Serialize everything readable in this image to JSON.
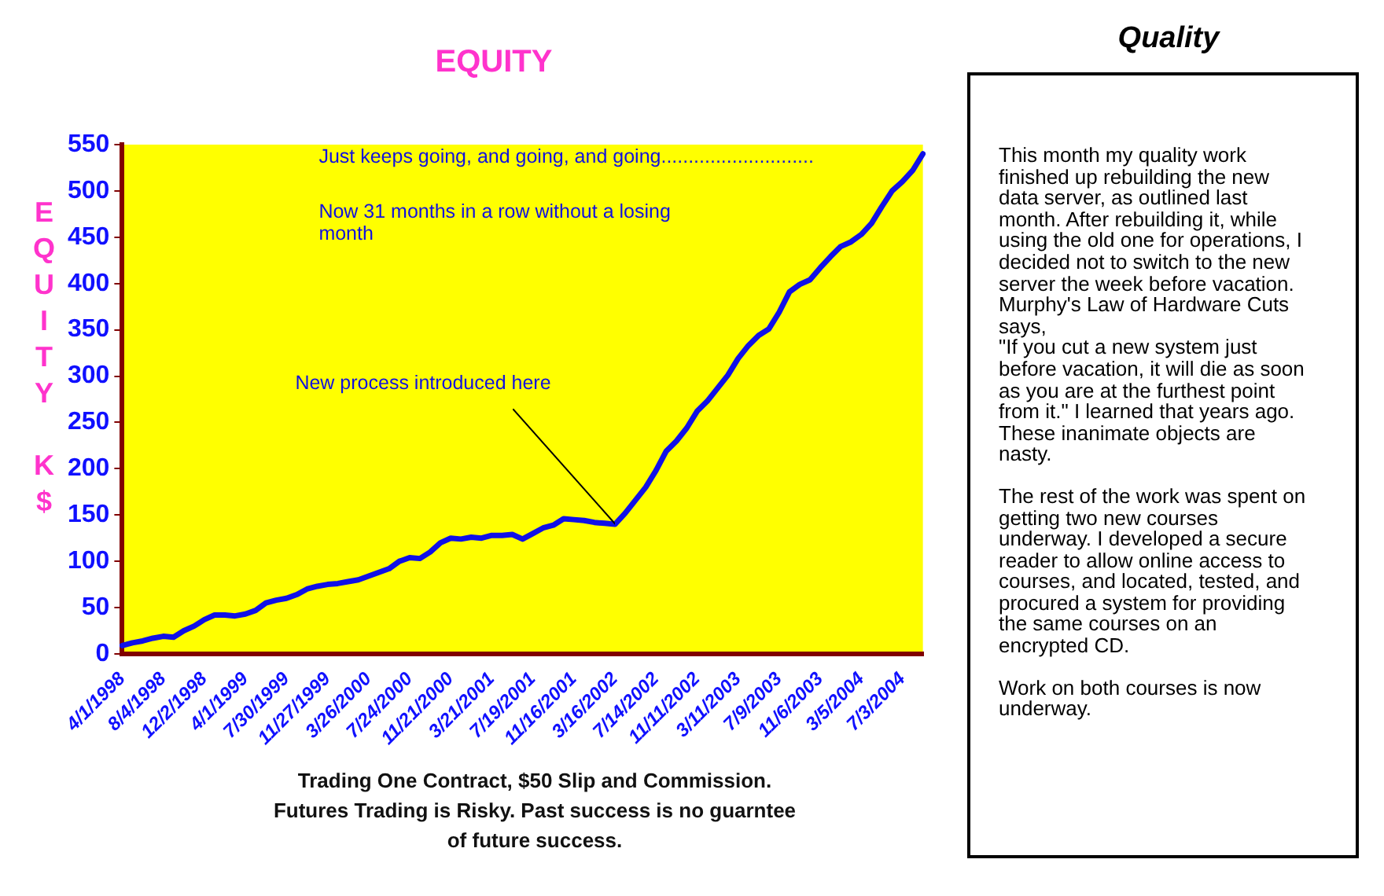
{
  "chart_data": [
    {
      "type": "line",
      "title": "EQUITY",
      "ylabel": "EQUITY K$",
      "categories": [
        "4/1/1998",
        null,
        null,
        null,
        "8/4/1998",
        null,
        null,
        null,
        "12/2/1998",
        null,
        null,
        null,
        "4/1/1999",
        null,
        null,
        null,
        "7/30/1999",
        null,
        null,
        null,
        "11/27/1999",
        null,
        null,
        null,
        "3/26/2000",
        null,
        null,
        null,
        "7/24/2000",
        null,
        null,
        null,
        "11/21/2000",
        null,
        null,
        null,
        "3/21/2001",
        null,
        null,
        null,
        "7/19/2001",
        null,
        null,
        null,
        "11/16/2001",
        null,
        null,
        null,
        "3/16/2002",
        null,
        null,
        null,
        "7/14/2002",
        null,
        null,
        null,
        "11/11/2002",
        null,
        null,
        null,
        "3/11/2003",
        null,
        null,
        null,
        "7/9/2003",
        null,
        null,
        null,
        "11/6/2003",
        null,
        null,
        null,
        "3/5/2004",
        null,
        null,
        null,
        "7/3/2004",
        null,
        null
      ],
      "series": [
        {
          "color": "#1010e8",
          "values": [
            9,
            12,
            14,
            17,
            19,
            18,
            25,
            30,
            37,
            42,
            42,
            41,
            43,
            47,
            55,
            58,
            60,
            64,
            70,
            73,
            75,
            76,
            78,
            80,
            84,
            88,
            92,
            100,
            104,
            103,
            110,
            120,
            125,
            124,
            126,
            125,
            128,
            128,
            129,
            124,
            130,
            136,
            139,
            146,
            145,
            144,
            142,
            141,
            140,
            152,
            166,
            180,
            198,
            219,
            230,
            244,
            262,
            273,
            287,
            301,
            319,
            333,
            344,
            351,
            369,
            391,
            399,
            404,
            417,
            429,
            440,
            445,
            453,
            465,
            483,
            500,
            510,
            522,
            540
          ]
        }
      ],
      "ylim": [
        0,
        550
      ],
      "yticks": [
        0,
        50,
        100,
        150,
        200,
        250,
        300,
        350,
        400,
        450,
        500,
        550
      ],
      "grid": false,
      "legend": false,
      "marker": "none",
      "line_style": "solid",
      "annotations": [
        "Just keeps going, and going, and going............................",
        "Now 31 months in a row without a losing month",
        {
          "text": "New process introduced here",
          "x": "3/16/2002",
          "y": 140
        },
        "Trading One Contract, $50 Slip and Commission.\nFutures Trading is Risky. Past success is no guarntee\nof future success."
      ]
    },
    {
      "type": "other",
      "title": "Quality",
      "annotations": [
        "This month my quality work finished up rebuilding the new data server, as outlined last month. After rebuilding it, while using the old one for operations, I decided not to switch to the new server the week before vacation. Murphy's Law of Hardware Cuts says,\n\"If you cut a new system just before vacation, it will die as soon as you are at the furthest point from it.\" I learned that years ago. These inanimate objects are nasty.",
        "The rest of the work was spent on getting two new courses underway. I developed a secure reader to allow online access to courses, and located, tested, and procured a system for providing the same courses on an encrypted CD.",
        "Work on both courses is now underway."
      ]
    }
  ]
}
